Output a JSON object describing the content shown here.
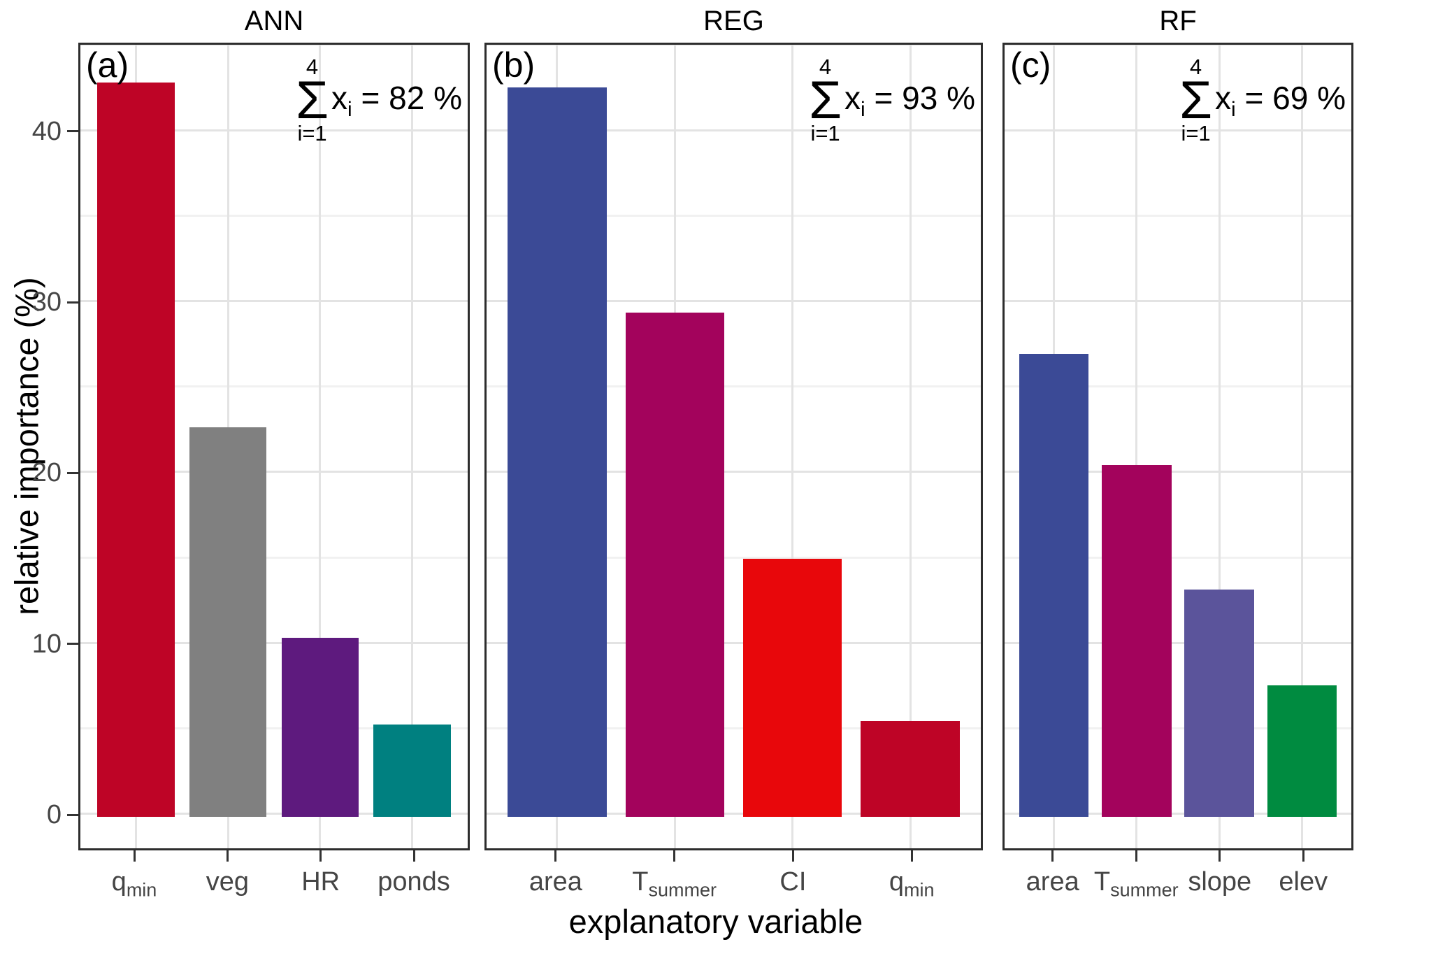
{
  "figure": {
    "y_axis": {
      "title": "relative importance (%)",
      "ticks": [
        0,
        10,
        20,
        30,
        40
      ]
    },
    "x_axis": {
      "title": "explanatory variable"
    },
    "colors": {
      "background": "#FFFFFF",
      "panel_border": "#2D2D2D",
      "grid_major": "#E3E3E3",
      "grid_minor": "#F1F1F1",
      "axis_text": "#454545",
      "tick_mark": "#333333"
    }
  },
  "chart_data": [
    {
      "type": "bar",
      "facet": "ANN",
      "panel_label": "(a)",
      "categories": [
        {
          "main": "q",
          "sub": "min"
        },
        {
          "main": "veg",
          "sub": ""
        },
        {
          "main": "HR",
          "sub": ""
        },
        {
          "main": "ponds",
          "sub": ""
        }
      ],
      "values": [
        43.0,
        22.8,
        10.5,
        5.4
      ],
      "bar_colors": [
        "#BE0426",
        "#808080",
        "#5E1A7E",
        "#008080"
      ],
      "annotation": {
        "sum_upper": "4",
        "sigma": "Σ",
        "sum_lower": "i=1",
        "variable": "x",
        "variable_sub": "i",
        "result": "= 82 %"
      },
      "ylabel": "relative importance (%)",
      "xlabel": "explanatory variable",
      "ylim": [
        0,
        45
      ],
      "grid": true,
      "legend": "none"
    },
    {
      "type": "bar",
      "facet": "REG",
      "panel_label": "(b)",
      "categories": [
        {
          "main": "area",
          "sub": ""
        },
        {
          "main": "T",
          "sub": "summer"
        },
        {
          "main": "CI",
          "sub": ""
        },
        {
          "main": "q",
          "sub": "min"
        }
      ],
      "values": [
        42.7,
        29.5,
        15.1,
        5.6
      ],
      "bar_colors": [
        "#3B4A96",
        "#A3035C",
        "#E8070B",
        "#BE0426"
      ],
      "annotation": {
        "sum_upper": "4",
        "sigma": "Σ",
        "sum_lower": "i=1",
        "variable": "x",
        "variable_sub": "i",
        "result": "= 93 %"
      },
      "ylabel": "relative importance (%)",
      "xlabel": "explanatory variable",
      "ylim": [
        0,
        45
      ],
      "grid": true,
      "legend": "none"
    },
    {
      "type": "bar",
      "facet": "RF",
      "panel_label": "(c)",
      "categories": [
        {
          "main": "area",
          "sub": ""
        },
        {
          "main": "T",
          "sub": "summer"
        },
        {
          "main": "slope",
          "sub": ""
        },
        {
          "main": "elev",
          "sub": ""
        }
      ],
      "values": [
        27.1,
        20.6,
        13.3,
        7.7
      ],
      "bar_colors": [
        "#3B4A96",
        "#A3035C",
        "#5B549B",
        "#008B40"
      ],
      "annotation": {
        "sum_upper": "4",
        "sigma": "Σ",
        "sum_lower": "i=1",
        "variable": "x",
        "variable_sub": "i",
        "result": "= 69 %"
      },
      "ylabel": "relative importance (%)",
      "xlabel": "explanatory variable",
      "ylim": [
        0,
        45
      ],
      "grid": true,
      "legend": "none"
    }
  ]
}
